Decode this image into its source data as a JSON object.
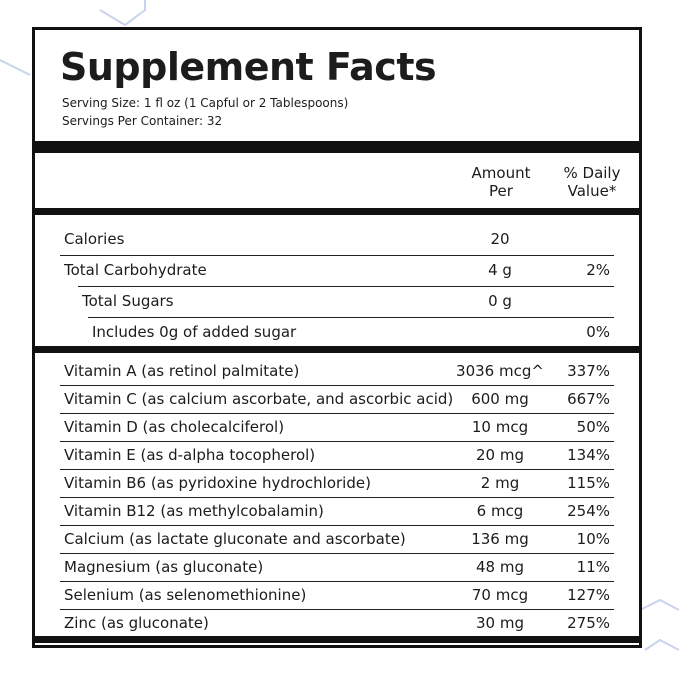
{
  "header": {
    "title": "Supplement Facts",
    "serving_size": "Serving Size: 1 fl oz (1 Capful or 2 Tablespoons)",
    "servings_per_container": "Servings Per Container: 32"
  },
  "columns": {
    "amount": "Amount Per",
    "daily_value": "% Daily Value*"
  },
  "macros": [
    {
      "name": "Calories",
      "amount": "20"
    },
    {
      "name": "Total Carbohydrate",
      "amount": "4 g",
      "daily_value": "2%"
    },
    {
      "name": "Total Sugars",
      "amount": "0 g"
    },
    {
      "name": "Includes 0g of added sugar",
      "daily_value": "0%"
    }
  ],
  "nutrients": [
    {
      "name": "Vitamin A (as retinol palmitate)",
      "amount": "3036 mcg^",
      "daily_value": "337%"
    },
    {
      "name": "Vitamin C (as calcium ascorbate, and ascorbic acid)",
      "amount": "600 mg",
      "daily_value": "667%"
    },
    {
      "name": "Vitamin D (as cholecalciferol)",
      "amount": "10 mcg",
      "daily_value": "50%"
    },
    {
      "name": "Vitamin E (as d-alpha tocopherol)",
      "amount": "20 mg",
      "daily_value": "134%"
    },
    {
      "name": "Vitamin B6 (as pyridoxine hydrochloride)",
      "amount": "2 mg",
      "daily_value": "115%"
    },
    {
      "name": "Vitamin B12 (as methylcobalamin)",
      "amount": "6 mcg",
      "daily_value": "254%"
    },
    {
      "name": "Calcium (as lactate gluconate and ascorbate)",
      "amount": "136 mg",
      "daily_value": "10%"
    },
    {
      "name": "Magnesium (as gluconate)",
      "amount": "48 mg",
      "daily_value": "11%"
    },
    {
      "name": "Selenium (as selenomethionine)",
      "amount": "70 mcg",
      "daily_value": "127%"
    },
    {
      "name": "Zinc (as gluconate)",
      "amount": "30 mg",
      "daily_value": "275%"
    }
  ]
}
